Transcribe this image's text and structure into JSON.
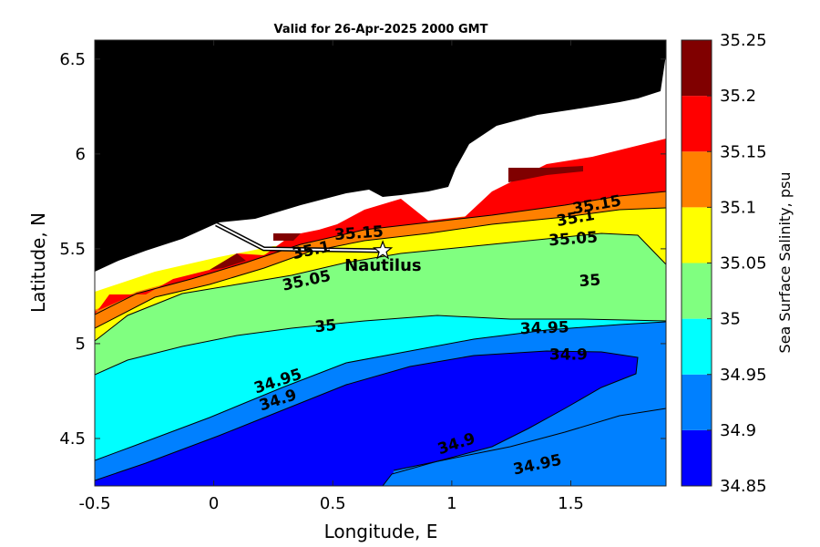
{
  "chart_data": {
    "type": "heatmap",
    "title": "Valid for 26-Apr-2025 2000 GMT",
    "xlabel": "Longitude, E",
    "ylabel": "Latitude, N",
    "xlim": [
      -0.5,
      1.9
    ],
    "ylim": [
      4.25,
      6.6
    ],
    "xticks": [
      -0.5,
      0,
      0.5,
      1,
      1.5
    ],
    "xtick_labels": [
      "-0.5",
      "0",
      "0.5",
      "1",
      "1.5"
    ],
    "yticks": [
      4.5,
      5,
      5.5,
      6,
      6.5
    ],
    "ytick_labels": [
      "4.5",
      "5",
      "5.5",
      "6",
      "6.5"
    ],
    "colorbar": {
      "label": "Sea Surface Salinity, psu",
      "levels": [
        34.85,
        34.9,
        34.95,
        35,
        35.05,
        35.1,
        35.15,
        35.2,
        35.25
      ],
      "tick_labels": [
        "34.85",
        "34.9",
        "34.95",
        "35",
        "35.05",
        "35.1",
        "35.15",
        "35.2",
        "35.25"
      ],
      "colors": [
        "#0000ff",
        "#0080ff",
        "#00ffff",
        "#80ff80",
        "#ffff00",
        "#ff8000",
        "#ff0000",
        "#800000"
      ]
    },
    "land_color": "#000000",
    "nodata_color": "#ffffff",
    "contour_labels": [
      {
        "text": "35.15",
        "lon": 0.61,
        "lat": 5.58,
        "rot": -4
      },
      {
        "text": "35.1",
        "lon": 0.41,
        "lat": 5.49,
        "rot": -12
      },
      {
        "text": "35.05",
        "lon": 0.39,
        "lat": 5.33,
        "rot": -12
      },
      {
        "text": "35.15",
        "lon": 1.61,
        "lat": 5.73,
        "rot": -10
      },
      {
        "text": "35.1",
        "lon": 1.52,
        "lat": 5.66,
        "rot": -10
      },
      {
        "text": "35.05",
        "lon": 1.51,
        "lat": 5.55,
        "rot": -4
      },
      {
        "text": "35",
        "lon": 1.58,
        "lat": 5.33,
        "rot": -4
      },
      {
        "text": "35",
        "lon": 0.47,
        "lat": 5.09,
        "rot": -6
      },
      {
        "text": "34.95",
        "lon": 1.39,
        "lat": 5.08,
        "rot": -2
      },
      {
        "text": "34.9",
        "lon": 1.49,
        "lat": 4.94,
        "rot": 0
      },
      {
        "text": "34.95",
        "lon": 0.27,
        "lat": 4.8,
        "rot": -18
      },
      {
        "text": "34.9",
        "lon": 0.27,
        "lat": 4.7,
        "rot": -18
      },
      {
        "text": "34.9",
        "lon": 1.02,
        "lat": 4.47,
        "rot": -18
      },
      {
        "text": "34.95",
        "lon": 1.36,
        "lat": 4.36,
        "rot": -12
      }
    ],
    "station": {
      "name": "Nautilus",
      "lon": 0.71,
      "lat": 5.49
    },
    "track": [
      {
        "lon": 0.01,
        "lat": 5.63
      },
      {
        "lon": 0.21,
        "lat": 5.5
      },
      {
        "lon": 0.71,
        "lat": 5.49
      }
    ]
  }
}
